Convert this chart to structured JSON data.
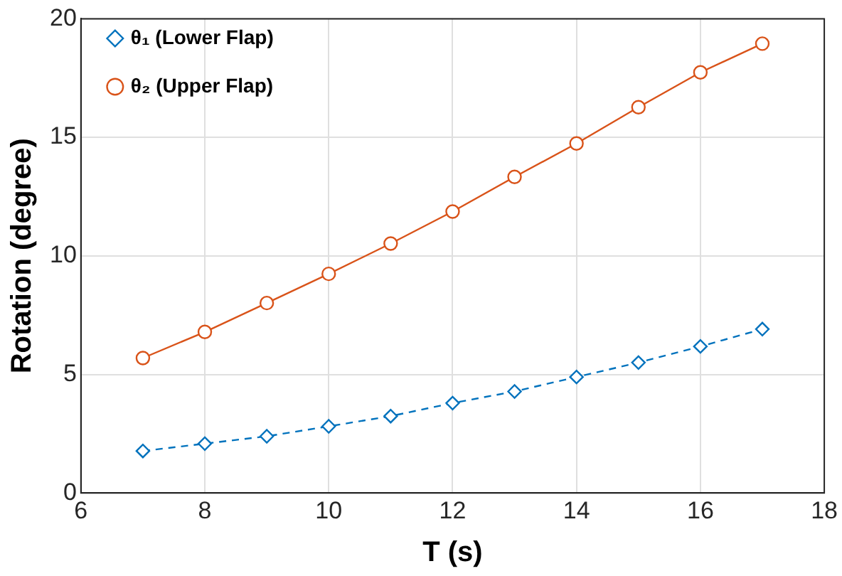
{
  "chart_data": {
    "type": "line",
    "xlabel": "T (s)",
    "ylabel": "Rotation (degree)",
    "x": [
      7,
      8,
      9,
      10,
      11,
      12,
      13,
      14,
      15,
      16,
      17
    ],
    "series": [
      {
        "name": "θ₁ (Lower Flap)",
        "color": "#0072bd",
        "marker": "diamond",
        "line_style": "dashed",
        "values": [
          1.77,
          2.08,
          2.39,
          2.81,
          3.24,
          3.79,
          4.28,
          4.89,
          5.5,
          6.18,
          6.91
        ]
      },
      {
        "name": "θ₂ (Upper Flap)",
        "color": "#d95319",
        "marker": "circle",
        "line_style": "solid",
        "values": [
          5.69,
          6.79,
          8.01,
          9.24,
          10.52,
          11.87,
          13.33,
          14.74,
          16.27,
          17.74,
          18.95
        ]
      }
    ],
    "xlim": [
      6,
      18
    ],
    "xticks": [
      6,
      8,
      10,
      12,
      14,
      16,
      18
    ],
    "ylim": [
      0,
      20
    ],
    "yticks": [
      0,
      5,
      10,
      15,
      20
    ],
    "grid": true,
    "legend": "top left"
  }
}
